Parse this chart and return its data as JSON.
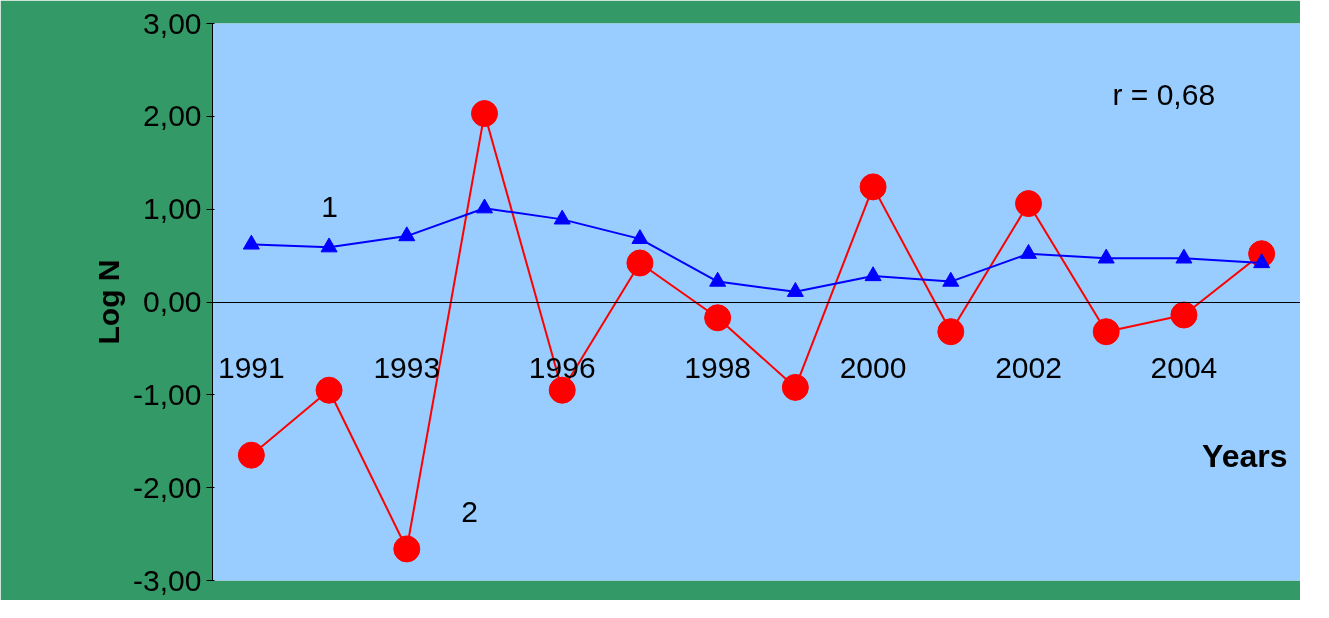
{
  "chart_data": {
    "type": "line",
    "xlabel": "Years",
    "ylabel": "Log N",
    "categories": [
      "1991",
      null,
      "1993",
      null,
      "1996",
      null,
      "1998",
      null,
      "2000",
      null,
      "2002",
      null,
      "2004",
      null
    ],
    "series": [
      {
        "name": "1",
        "color": "#0000ff",
        "marker": "triangle",
        "values": [
          0.62,
          0.59,
          0.71,
          1.01,
          0.89,
          0.68,
          0.22,
          0.11,
          0.28,
          0.22,
          0.52,
          0.47,
          0.47,
          0.42
        ]
      },
      {
        "name": "2",
        "color": "#ff0000",
        "marker": "circle",
        "values": [
          -1.65,
          -0.95,
          -2.66,
          2.03,
          -0.95,
          0.42,
          -0.17,
          -0.92,
          1.24,
          -0.32,
          1.06,
          -0.32,
          -0.14,
          0.52
        ]
      }
    ],
    "ylim": [
      -3,
      3
    ],
    "yticks": [
      {
        "value": -3,
        "label": "-3,00"
      },
      {
        "value": -2,
        "label": "-2,00"
      },
      {
        "value": -1,
        "label": "-1,00"
      },
      {
        "value": 0,
        "label": "0,00"
      },
      {
        "value": 1,
        "label": "1,00"
      },
      {
        "value": 2,
        "label": "2,00"
      },
      {
        "value": 3,
        "label": "3,00"
      }
    ],
    "grid": false,
    "legend": false,
    "annotations": [
      "r = 0,68"
    ]
  }
}
